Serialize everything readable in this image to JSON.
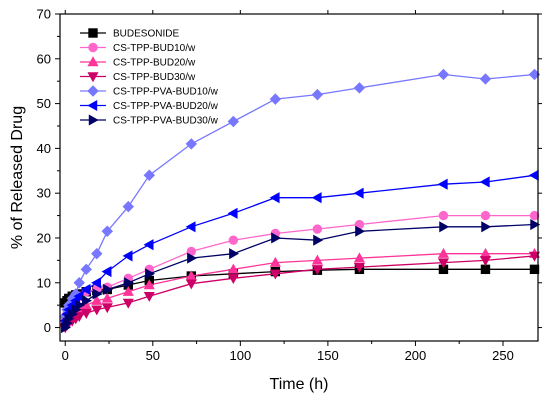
{
  "chart_data": {
    "type": "line",
    "title": "",
    "xlabel": "Time (h)",
    "ylabel": "% of Released Drug",
    "xlim": [
      -3,
      270
    ],
    "ylim": [
      -3,
      70
    ],
    "xticks": [
      0,
      50,
      100,
      150,
      200,
      250
    ],
    "yticks": [
      0,
      10,
      20,
      30,
      40,
      50,
      60,
      70
    ],
    "grid": false,
    "legend_position": "top-left",
    "series": [
      {
        "name": "BUDESONIDE",
        "color": "#000000",
        "marker": "square",
        "x": [
          0,
          1,
          2,
          4,
          6,
          8,
          12,
          18,
          24,
          36,
          48,
          72,
          96,
          120,
          144,
          168,
          216,
          240,
          268
        ],
        "y": [
          5.5,
          6,
          6.5,
          7,
          7.3,
          7.5,
          8,
          8.3,
          8.5,
          9.5,
          10.5,
          11.5,
          12,
          12.5,
          12.8,
          13,
          13,
          13,
          13
        ]
      },
      {
        "name": "CS-TPP-BUD10/w",
        "color": "#ff66cc",
        "marker": "circle",
        "x": [
          0,
          1,
          2,
          4,
          6,
          8,
          12,
          18,
          24,
          36,
          48,
          72,
          96,
          120,
          144,
          168,
          216,
          240,
          268
        ],
        "y": [
          2,
          3,
          4,
          5,
          6,
          7,
          8,
          8.5,
          9,
          11,
          13,
          17,
          19.5,
          21,
          22,
          23,
          25,
          25,
          25
        ]
      },
      {
        "name": "CS-TPP-BUD20/w",
        "color": "#ff3399",
        "marker": "triangle-up",
        "x": [
          0,
          1,
          2,
          4,
          6,
          8,
          12,
          18,
          24,
          36,
          48,
          72,
          96,
          120,
          144,
          168,
          216,
          240,
          268
        ],
        "y": [
          1,
          1.5,
          2,
          2.8,
          3.5,
          4.2,
          5,
          6,
          6.5,
          8,
          9.5,
          11.5,
          13,
          14.5,
          15,
          15.5,
          16.5,
          16.5,
          16.5
        ]
      },
      {
        "name": "CS-TPP-BUD30/w",
        "color": "#cc0066",
        "marker": "triangle-down",
        "x": [
          0,
          1,
          2,
          4,
          6,
          8,
          12,
          18,
          24,
          36,
          48,
          72,
          96,
          120,
          144,
          168,
          216,
          240,
          268
        ],
        "y": [
          0,
          0.5,
          1,
          1.5,
          2,
          2.5,
          3.2,
          4,
          4.5,
          5.5,
          7,
          9.8,
          11,
          12,
          13,
          13.5,
          14.5,
          15,
          16
        ]
      },
      {
        "name": "CS-TPP-PVA-BUD10/w",
        "color": "#7777ff",
        "marker": "diamond",
        "x": [
          0,
          1,
          2,
          4,
          6,
          8,
          12,
          18,
          24,
          36,
          48,
          72,
          96,
          120,
          144,
          168,
          216,
          240,
          268
        ],
        "y": [
          2.5,
          4,
          5,
          6.5,
          7.5,
          10,
          13,
          16.5,
          21.5,
          27,
          34,
          41,
          46,
          51,
          52,
          53.5,
          56.5,
          55.5,
          56.5
        ]
      },
      {
        "name": "CS-TPP-PVA-BUD20/w",
        "color": "#0000ff",
        "marker": "triangle-left",
        "x": [
          0,
          1,
          2,
          4,
          6,
          8,
          12,
          18,
          24,
          36,
          48,
          72,
          96,
          120,
          144,
          168,
          216,
          240,
          268
        ],
        "y": [
          1.5,
          3,
          4,
          5,
          6,
          7,
          8.5,
          10,
          12.5,
          16,
          18.5,
          22.5,
          25.5,
          29,
          29,
          30,
          32,
          32.5,
          34
        ]
      },
      {
        "name": "CS-TPP-PVA-BUD30/w",
        "color": "#000066",
        "marker": "triangle-right",
        "x": [
          0,
          1,
          2,
          4,
          6,
          8,
          12,
          18,
          24,
          36,
          48,
          72,
          96,
          120,
          144,
          168,
          216,
          240,
          268
        ],
        "y": [
          0,
          1,
          2,
          3,
          4,
          5,
          6,
          7.5,
          8.5,
          10,
          12,
          15.5,
          16.5,
          20,
          19.5,
          21.5,
          22.5,
          22.5,
          23
        ]
      }
    ]
  }
}
